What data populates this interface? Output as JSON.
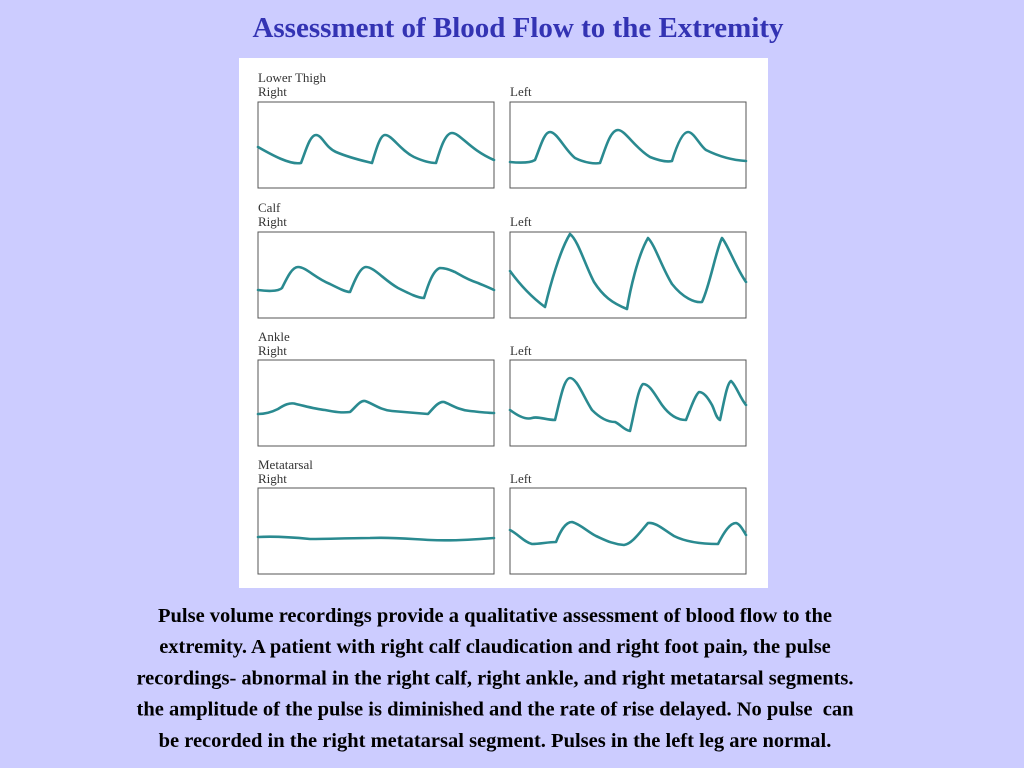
{
  "title": "Assessment of Blood Flow to the Extremity",
  "figure": {
    "rows": [
      {
        "segment": "Lower Thigh",
        "right": "Right",
        "left": "Left"
      },
      {
        "segment": "Calf",
        "right": "Right",
        "left": "Left"
      },
      {
        "segment": "Ankle",
        "right": "Right",
        "left": "Left"
      },
      {
        "segment": "Metatarsal",
        "right": "Right",
        "left": "Left"
      }
    ]
  },
  "caption": [
    "Pulse volume recordings provide a qualitative assessment of blood flow to the",
    "extremity. A patient with right calf claudication and right foot pain, the pulse",
    "recordings- abnormal in the right calf, right ankle, and right metatarsal segments.",
    "the amplitude of the pulse is diminished and the rate of rise delayed. No pulse  can",
    "be recorded in the right metatarsal segment. Pulses in the left leg are normal."
  ]
}
